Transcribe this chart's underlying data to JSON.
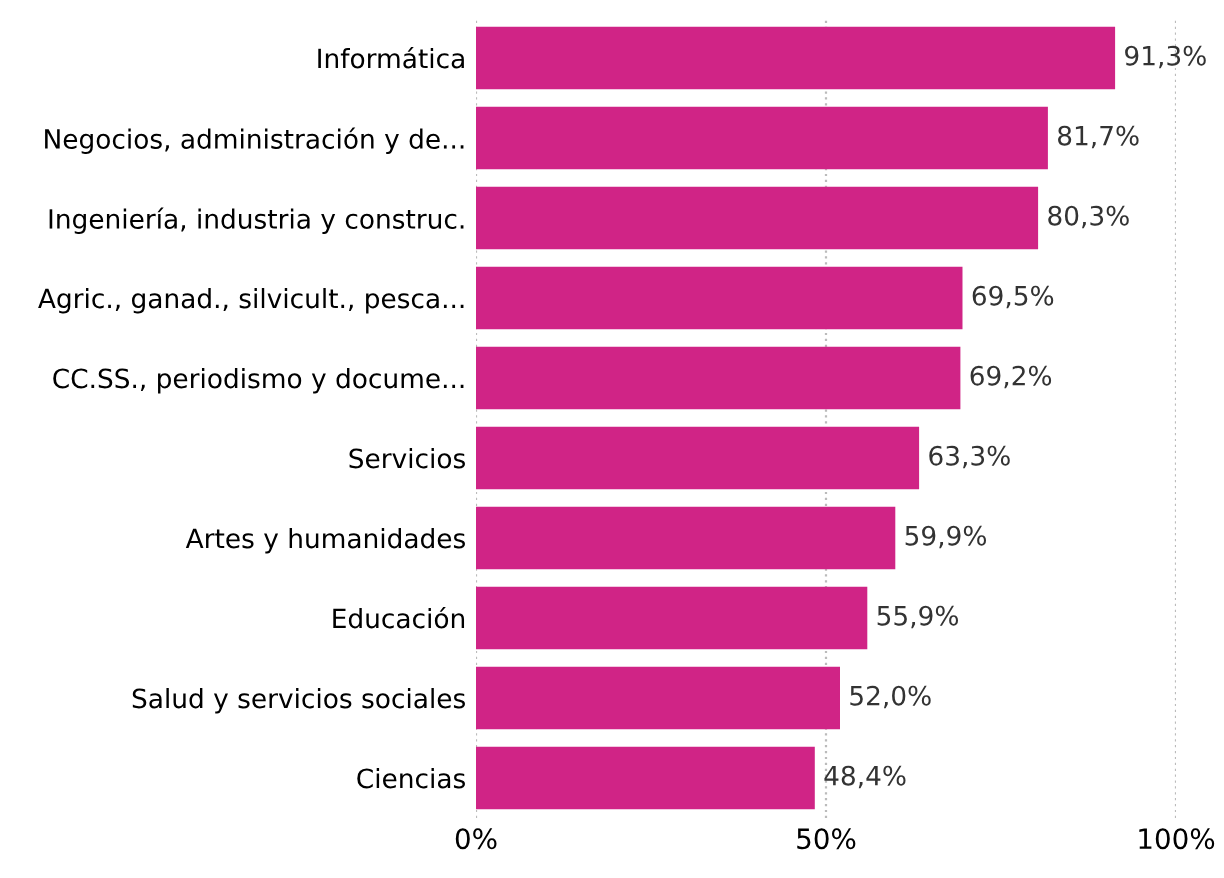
{
  "chart_data": {
    "type": "bar",
    "orientation": "horizontal",
    "categories": [
      "Informática",
      "Negocios, administración y de...",
      "Ingeniería, industria y construc.",
      "Agric., ganad., silvicult., pesca...",
      "CC.SS., periodismo y docume...",
      "Servicios",
      "Artes y humanidades",
      "Educación",
      "Salud y servicios sociales",
      "Ciencias"
    ],
    "values": [
      91.3,
      81.7,
      80.3,
      69.5,
      69.2,
      63.3,
      59.9,
      55.9,
      52.0,
      48.4
    ],
    "value_labels": [
      "91,3%",
      "81,7%",
      "80,3%",
      "69,5%",
      "69,2%",
      "63,3%",
      "59,9%",
      "55,9%",
      "52,0%",
      "48,4%"
    ],
    "color": "#d02486",
    "xlim": [
      0,
      100
    ],
    "xticks": [
      {
        "value": 0,
        "label": "0%"
      },
      {
        "value": 50,
        "label": "50%"
      },
      {
        "value": 100,
        "label": "100%"
      }
    ],
    "grid": "x",
    "legend": false
  }
}
